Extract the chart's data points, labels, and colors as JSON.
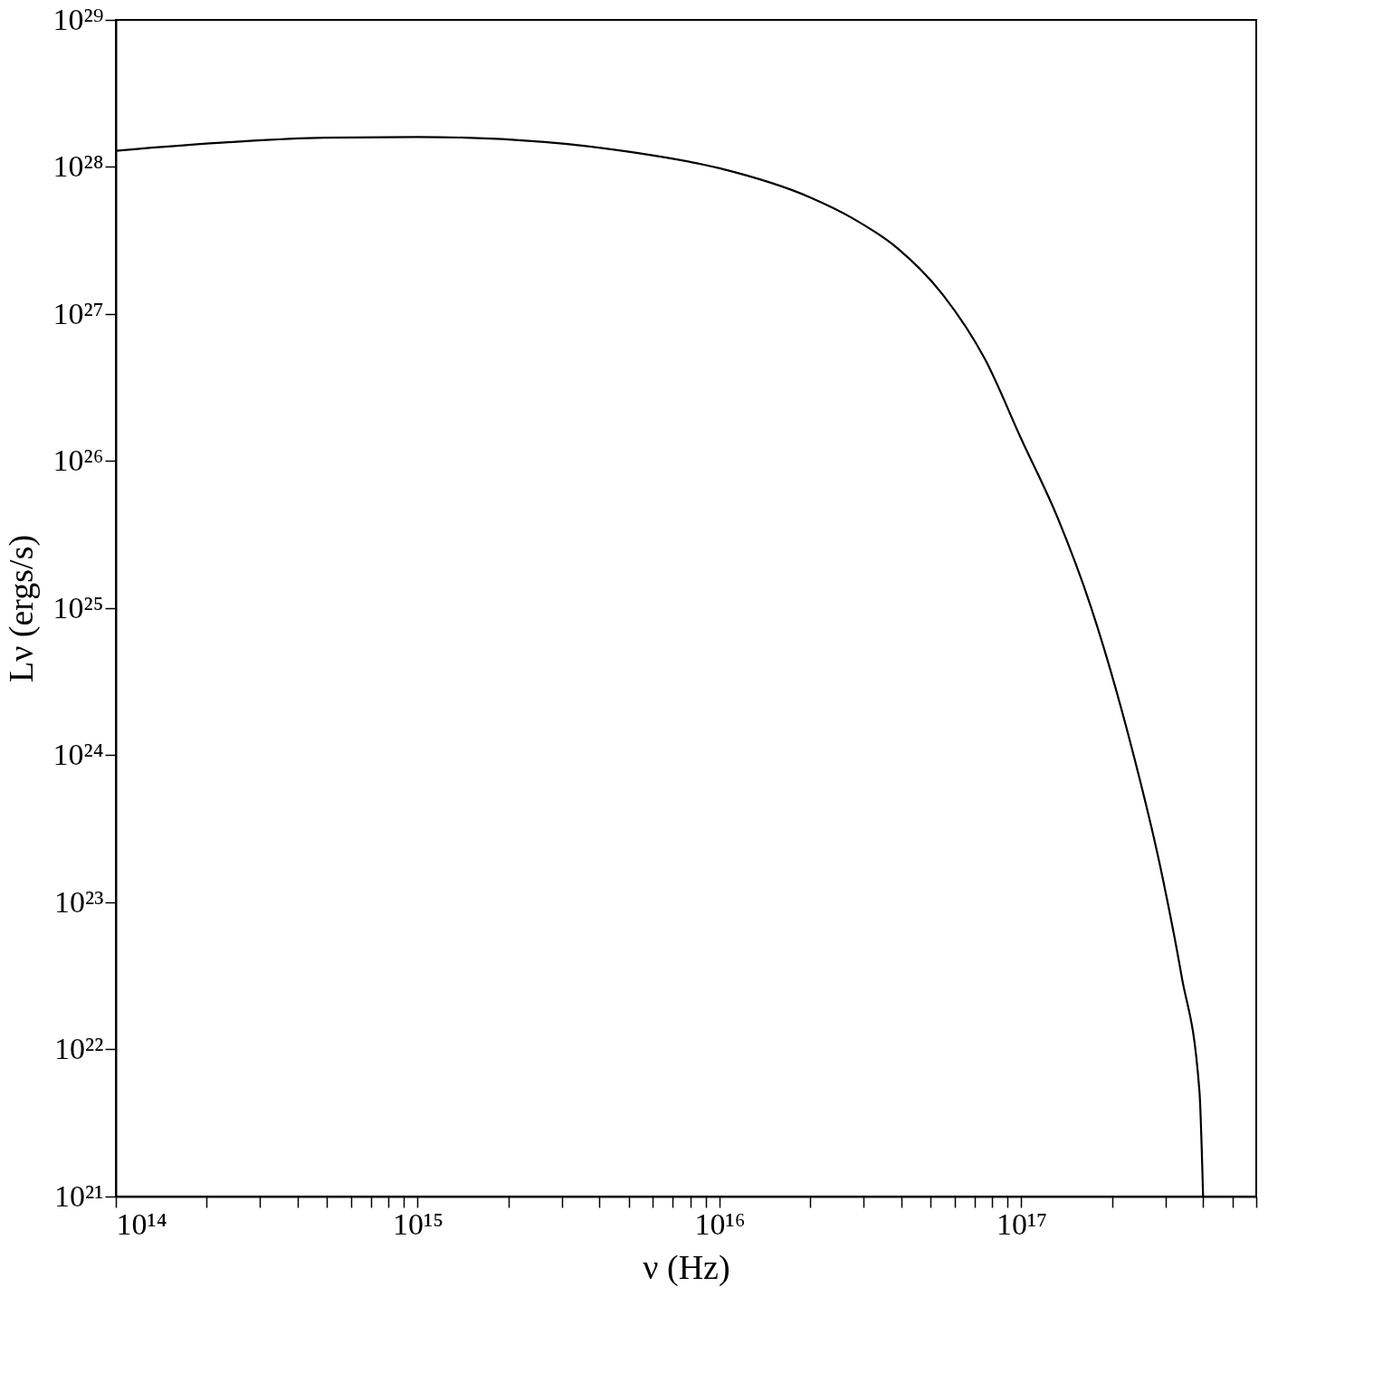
{
  "chart_data": {
    "type": "line",
    "xlabel": "ν (Hz)",
    "ylabel": "Lν (ergs/s)",
    "log": "xy",
    "grid": false,
    "line_style": "solid",
    "marker": "none",
    "x": [
      100000000000000.0,
      245000000000000.0,
      490000000000000.0,
      1000000000000000.0,
      2630000000000000.0,
      5130000000000000.0,
      1e+16,
      2e+16,
      2.75e+16,
      3.89e+16,
      5.5e+16,
      7.59e+16,
      1e+17,
      1.32e+17,
      1.7e+17,
      2.24e+17,
      2.95e+17,
      3.39e+17,
      3.89e+17,
      4e+17
    ],
    "series": [
      {
        "color": "#000000",
        "values": [
          1.29e+28,
          1.48e+28,
          1.58e+28,
          1.6e+28,
          1.48e+28,
          1.26e+28,
          9.8e+27,
          6.2e+27,
          4.5e+27,
          2.8e+27,
          1.35e+27,
          4.9e+26,
          1.41e+26,
          4.1e+25,
          1.02e+25,
          1.48e+24,
          1.41e+23,
          3.2e+22,
          5.2e+21,
          1e+21
        ]
      }
    ],
    "xlim": [
      100000000000000.0,
      6e+17
    ],
    "ylim": [
      1e+21,
      1e+29
    ],
    "xticks": [
      {
        "value": 100000000000000.0,
        "label": "10¹⁴"
      },
      {
        "value": 200000000000000.0,
        "label": null
      },
      {
        "value": 300000000000000.0,
        "label": null
      },
      {
        "value": 400000000000000.0,
        "label": null
      },
      {
        "value": 500000000000000.0,
        "label": null
      },
      {
        "value": 600000000000000.0,
        "label": null
      },
      {
        "value": 700000000000000.0,
        "label": null
      },
      {
        "value": 800000000000000.0,
        "label": null
      },
      {
        "value": 900000000000000.0,
        "label": null
      },
      {
        "value": 1000000000000000.0,
        "label": "10¹⁵"
      },
      {
        "value": 2000000000000000.0,
        "label": null
      },
      {
        "value": 3000000000000000.0,
        "label": null
      },
      {
        "value": 4000000000000000.0,
        "label": null
      },
      {
        "value": 5000000000000000.0,
        "label": null
      },
      {
        "value": 6000000000000000.0,
        "label": null
      },
      {
        "value": 7000000000000000.0,
        "label": null
      },
      {
        "value": 8000000000000000.0,
        "label": null
      },
      {
        "value": 9000000000000000.0,
        "label": null
      },
      {
        "value": 1e+16,
        "label": "10¹⁶"
      },
      {
        "value": 2e+16,
        "label": null
      },
      {
        "value": 3e+16,
        "label": null
      },
      {
        "value": 4e+16,
        "label": null
      },
      {
        "value": 5e+16,
        "label": null
      },
      {
        "value": 6e+16,
        "label": null
      },
      {
        "value": 7e+16,
        "label": null
      },
      {
        "value": 8e+16,
        "label": null
      },
      {
        "value": 9e+16,
        "label": null
      },
      {
        "value": 1e+17,
        "label": "10¹⁷"
      },
      {
        "value": 2e+17,
        "label": null
      },
      {
        "value": 3e+17,
        "label": null
      },
      {
        "value": 4e+17,
        "label": null
      },
      {
        "value": 5e+17,
        "label": null
      },
      {
        "value": 6e+17,
        "label": null
      }
    ],
    "yticks": [
      {
        "value": 1e+21,
        "label": "10²¹"
      },
      {
        "value": 1e+22,
        "label": "10²²"
      },
      {
        "value": 1e+23,
        "label": "10²³"
      },
      {
        "value": 1e+24,
        "label": "10²⁴"
      },
      {
        "value": 1e+25,
        "label": "10²⁵"
      },
      {
        "value": 1e+26,
        "label": "10²⁶"
      },
      {
        "value": 1e+27,
        "label": "10²⁷"
      },
      {
        "value": 1e+28,
        "label": "10²⁸"
      },
      {
        "value": 1e+29,
        "label": "10²⁹"
      }
    ]
  }
}
